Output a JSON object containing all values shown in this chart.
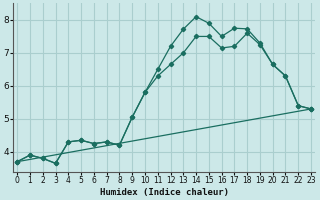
{
  "xlabel": "Humidex (Indice chaleur)",
  "bg_color": "#cce8e8",
  "grid_color": "#aacece",
  "line_color": "#1a6e60",
  "curve1_x": [
    0,
    1,
    2,
    3,
    4,
    5,
    6,
    7,
    8,
    9,
    10,
    11,
    12,
    13,
    14,
    15,
    16,
    17,
    18,
    19,
    20,
    21,
    22,
    23
  ],
  "curve1_y": [
    3.7,
    3.9,
    3.8,
    3.65,
    4.3,
    4.35,
    4.25,
    4.3,
    4.2,
    5.05,
    5.8,
    6.5,
    7.2,
    7.72,
    8.1,
    7.9,
    7.5,
    7.75,
    7.73,
    7.3,
    6.65,
    6.3,
    5.4,
    5.3
  ],
  "curve2_x": [
    0,
    1,
    2,
    3,
    4,
    5,
    6,
    7,
    8,
    9,
    10,
    11,
    12,
    13,
    14,
    15,
    16,
    17,
    18,
    19,
    20,
    21,
    22,
    23
  ],
  "curve2_y": [
    3.7,
    3.9,
    3.8,
    3.65,
    4.3,
    4.35,
    4.25,
    4.3,
    4.2,
    5.05,
    5.8,
    6.3,
    6.65,
    7.0,
    7.5,
    7.5,
    7.15,
    7.2,
    7.6,
    7.25,
    6.65,
    6.3,
    5.4,
    5.3
  ],
  "curve3_x": [
    0,
    23
  ],
  "curve3_y": [
    3.7,
    5.3
  ],
  "xlim": [
    -0.3,
    23.3
  ],
  "ylim": [
    3.4,
    8.5
  ],
  "yticks": [
    4,
    5,
    6,
    7,
    8
  ],
  "xticks": [
    0,
    1,
    2,
    3,
    4,
    5,
    6,
    7,
    8,
    9,
    10,
    11,
    12,
    13,
    14,
    15,
    16,
    17,
    18,
    19,
    20,
    21,
    22,
    23
  ]
}
